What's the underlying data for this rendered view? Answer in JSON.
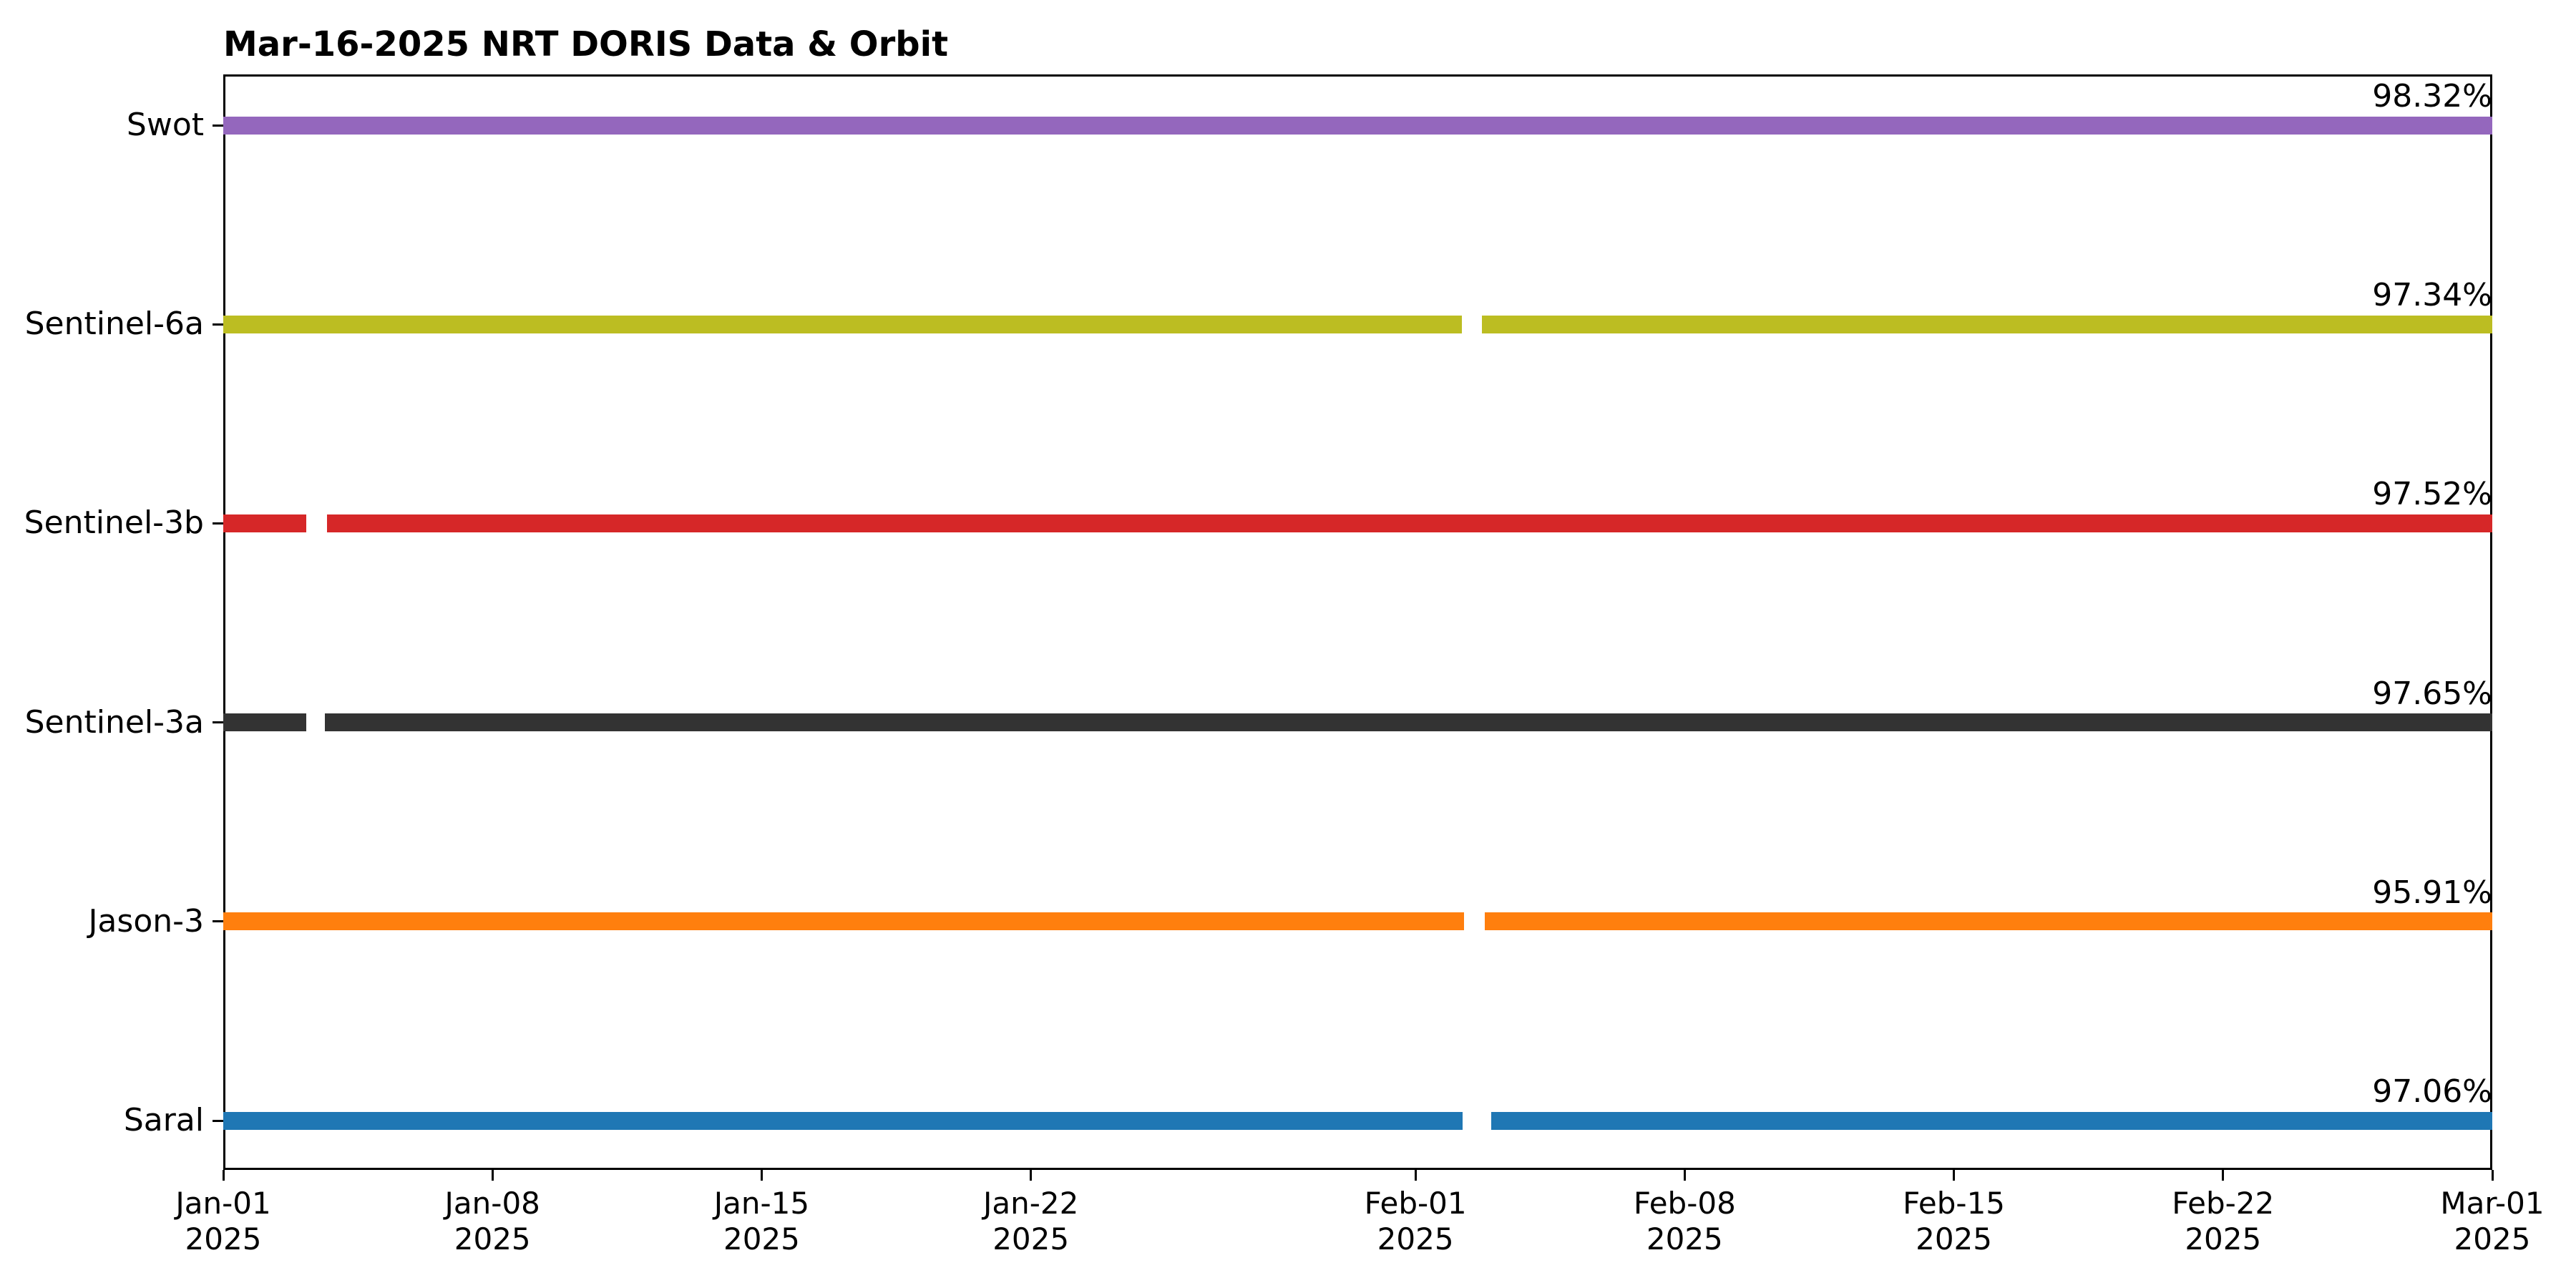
{
  "page": {
    "background_color": "#ffffff",
    "axis_color": "#000000",
    "text_color": "#000000"
  },
  "chart_data": {
    "type": "bar",
    "subtype": "horizontal-availability-timeline",
    "title": "Mar-16-2025 NRT DORIS Data & Orbit",
    "grid": false,
    "legend": "none",
    "x_axis": {
      "start_date": "Jan-01 2025",
      "end_date": "Mar-01 2025",
      "span_days": 59,
      "year_line": "2025",
      "ticks": [
        {
          "day": 0,
          "label": "Jan-01"
        },
        {
          "day": 7,
          "label": "Jan-08"
        },
        {
          "day": 14,
          "label": "Jan-15"
        },
        {
          "day": 21,
          "label": "Jan-22"
        },
        {
          "day": 31,
          "label": "Feb-01"
        },
        {
          "day": 38,
          "label": "Feb-08"
        },
        {
          "day": 45,
          "label": "Feb-15"
        },
        {
          "day": 52,
          "label": "Feb-22"
        },
        {
          "day": 59,
          "label": "Mar-01"
        }
      ]
    },
    "y_categories": [
      "Swot",
      "Sentinel-6a",
      "Sentinel-3b",
      "Sentinel-3a",
      "Jason-3",
      "Saral"
    ],
    "series": [
      {
        "name": "Swot",
        "color": "#9467bd",
        "availability_label": "98.32%",
        "segments_days": [
          [
            0,
            59
          ]
        ]
      },
      {
        "name": "Sentinel-6a",
        "color": "#bcbd22",
        "availability_label": "97.34%",
        "segments_days": [
          [
            0,
            32.2
          ],
          [
            32.72,
            59
          ]
        ]
      },
      {
        "name": "Sentinel-3b",
        "color": "#d62728",
        "availability_label": "97.52%",
        "segments_days": [
          [
            0,
            2.16
          ],
          [
            2.69,
            59
          ]
        ]
      },
      {
        "name": "Sentinel-3a",
        "color": "#333333",
        "availability_label": "97.65%",
        "segments_days": [
          [
            0,
            2.15
          ],
          [
            2.64,
            59
          ]
        ]
      },
      {
        "name": "Jason-3",
        "color": "#ff7f0e",
        "availability_label": "95.91%",
        "segments_days": [
          [
            0,
            32.26
          ],
          [
            32.8,
            59
          ]
        ]
      },
      {
        "name": "Saral",
        "color": "#1f77b4",
        "availability_label": "97.06%",
        "segments_days": [
          [
            0,
            32.22
          ],
          [
            32.97,
            59
          ]
        ]
      }
    ]
  }
}
